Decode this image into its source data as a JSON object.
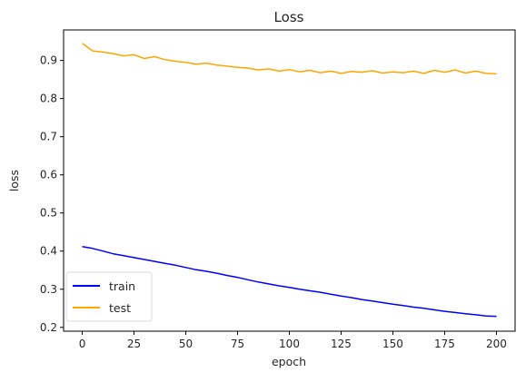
{
  "chart_data": {
    "type": "line",
    "title": "Loss",
    "xlabel": "epoch",
    "ylabel": "loss",
    "xlim": [
      -9,
      209
    ],
    "ylim": [
      0.19,
      0.98
    ],
    "xticks": [
      0,
      25,
      50,
      75,
      100,
      125,
      150,
      175,
      200
    ],
    "yticks": [
      0.2,
      0.3,
      0.4,
      0.5,
      0.6,
      0.7,
      0.8,
      0.9
    ],
    "grid": false,
    "legend_position": "lower-left",
    "series": [
      {
        "name": "train",
        "color": "#0000ff",
        "x": [
          0,
          5,
          10,
          15,
          20,
          25,
          30,
          35,
          40,
          45,
          50,
          55,
          60,
          65,
          70,
          75,
          80,
          85,
          90,
          95,
          100,
          105,
          110,
          115,
          120,
          125,
          130,
          135,
          140,
          145,
          150,
          155,
          160,
          165,
          170,
          175,
          180,
          185,
          190,
          195,
          200
        ],
        "y": [
          0.412,
          0.407,
          0.4,
          0.393,
          0.388,
          0.383,
          0.378,
          0.373,
          0.368,
          0.363,
          0.357,
          0.351,
          0.347,
          0.342,
          0.336,
          0.331,
          0.325,
          0.319,
          0.314,
          0.309,
          0.305,
          0.3,
          0.296,
          0.292,
          0.287,
          0.282,
          0.278,
          0.273,
          0.269,
          0.265,
          0.261,
          0.257,
          0.253,
          0.25,
          0.246,
          0.242,
          0.239,
          0.236,
          0.233,
          0.23,
          0.229
        ]
      },
      {
        "name": "test",
        "color": "#ffa500",
        "x": [
          0,
          5,
          10,
          15,
          20,
          25,
          30,
          35,
          40,
          45,
          50,
          55,
          60,
          65,
          70,
          75,
          80,
          85,
          90,
          95,
          100,
          105,
          110,
          115,
          120,
          125,
          130,
          135,
          140,
          145,
          150,
          155,
          160,
          165,
          170,
          175,
          180,
          185,
          190,
          195,
          200
        ],
        "y": [
          0.945,
          0.925,
          0.922,
          0.918,
          0.912,
          0.915,
          0.905,
          0.91,
          0.902,
          0.898,
          0.895,
          0.89,
          0.893,
          0.888,
          0.885,
          0.882,
          0.88,
          0.875,
          0.878,
          0.872,
          0.876,
          0.87,
          0.874,
          0.868,
          0.872,
          0.866,
          0.871,
          0.869,
          0.873,
          0.867,
          0.87,
          0.868,
          0.872,
          0.866,
          0.874,
          0.869,
          0.875,
          0.867,
          0.872,
          0.866,
          0.865
        ]
      }
    ]
  }
}
